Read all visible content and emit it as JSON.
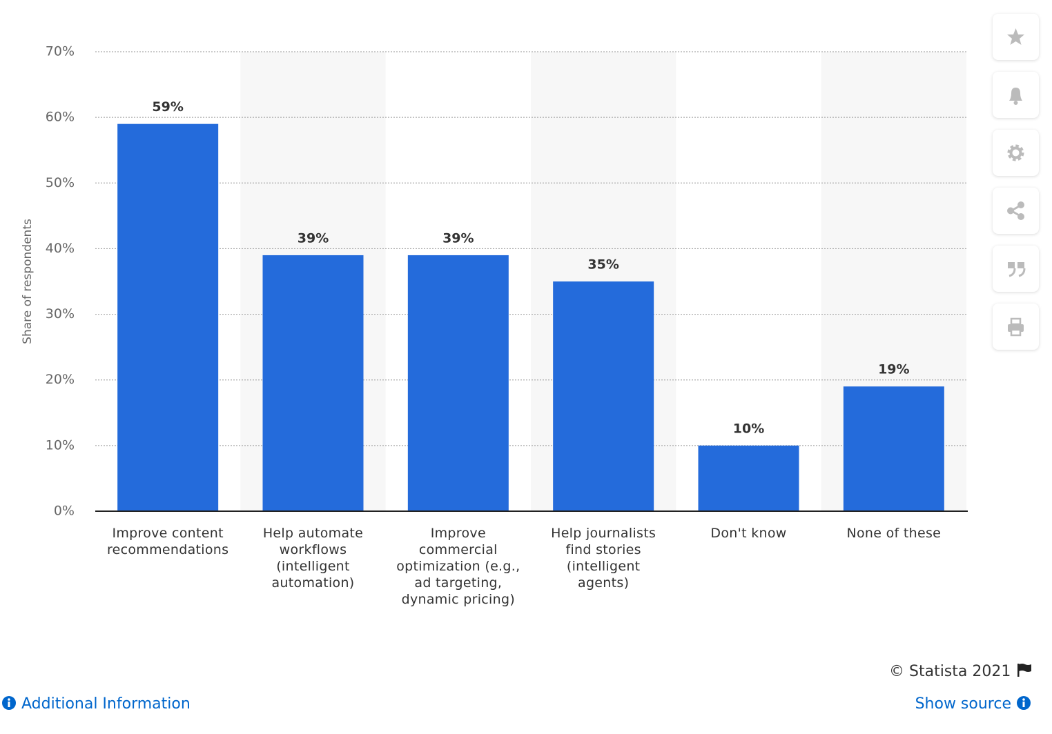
{
  "chart_data": {
    "type": "bar",
    "y_axis_label": "Share of respondents",
    "categories": [
      "Improve content recommendations",
      "Help automate workflows (intelligent automation)",
      "Improve commercial optimization (e.g., ad targeting, dynamic pricing)",
      "Help journalists find stories (intelligent agents)",
      "Don't know",
      "None of these"
    ],
    "values": [
      59,
      39,
      39,
      35,
      10,
      19
    ],
    "value_labels": [
      "59%",
      "39%",
      "39%",
      "35%",
      "10%",
      "19%"
    ],
    "color": "#246bdb",
    "ylim": [
      0,
      70
    ],
    "yticks": [
      {
        "value": 0,
        "label": "0%"
      },
      {
        "value": 10,
        "label": "10%"
      },
      {
        "value": 20,
        "label": "20%"
      },
      {
        "value": 30,
        "label": "30%"
      },
      {
        "value": 40,
        "label": "40%"
      },
      {
        "value": 50,
        "label": "50%"
      },
      {
        "value": 60,
        "label": "60%"
      },
      {
        "value": 70,
        "label": "70%"
      }
    ],
    "grid": true
  },
  "footer": {
    "copyright": "© Statista 2021",
    "additional_info": "Additional Information",
    "show_source": "Show source"
  }
}
